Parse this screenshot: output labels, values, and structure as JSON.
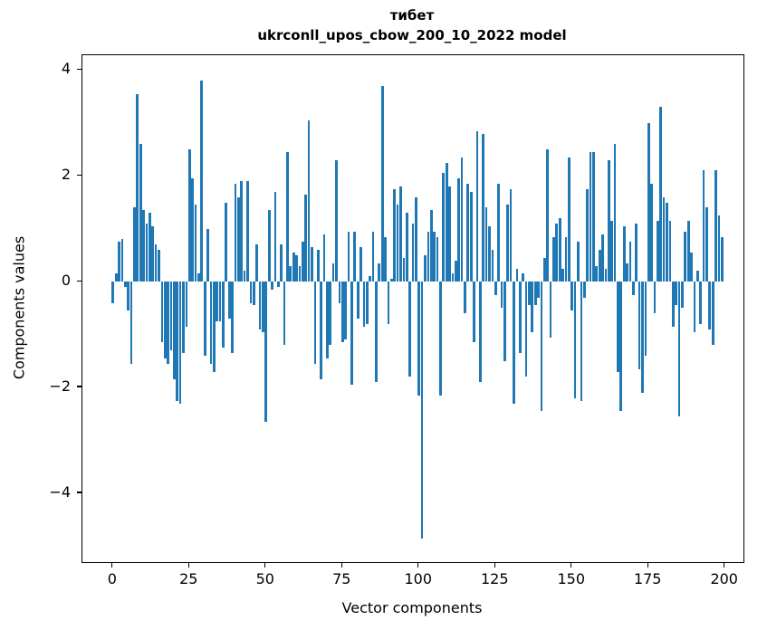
{
  "title": {
    "line1": "тибет",
    "line2": "ukrconll_upos_cbow_200_10_2022 model"
  },
  "chart_data": {
    "type": "bar",
    "title": "тибет\nukrconll_upos_cbow_200_10_2022 model",
    "xlabel": "Vector components",
    "ylabel": "Components values",
    "bar_color": "#1f77b4",
    "grid": false,
    "xlim": [
      -10,
      206
    ],
    "ylim": [
      -5.3,
      4.28
    ],
    "x_ticks": [
      {
        "v": 0,
        "label": "0"
      },
      {
        "v": 25,
        "label": "25"
      },
      {
        "v": 50,
        "label": "50"
      },
      {
        "v": 75,
        "label": "75"
      },
      {
        "v": 100,
        "label": "100"
      },
      {
        "v": 125,
        "label": "125"
      },
      {
        "v": 150,
        "label": "150"
      },
      {
        "v": 175,
        "label": "175"
      },
      {
        "v": 200,
        "label": "200"
      }
    ],
    "y_ticks": [
      {
        "v": 4,
        "label": "4"
      },
      {
        "v": 2,
        "label": "2"
      },
      {
        "v": 0,
        "label": "0"
      },
      {
        "v": -2,
        "label": "−2"
      },
      {
        "v": -4,
        "label": "−4"
      }
    ],
    "x_start": 0,
    "values": [
      -0.4,
      0.15,
      0.75,
      0.8,
      -0.1,
      -0.55,
      -1.55,
      1.4,
      3.55,
      2.6,
      1.35,
      1.1,
      1.3,
      1.05,
      0.7,
      0.6,
      -1.15,
      -1.45,
      -1.55,
      -1.3,
      -1.85,
      -2.25,
      -2.3,
      -1.35,
      -0.85,
      2.5,
      1.95,
      1.45,
      0.15,
      3.8,
      -1.4,
      1.0,
      -1.55,
      -1.7,
      -0.75,
      -0.75,
      -1.25,
      1.5,
      -0.7,
      -1.35,
      1.85,
      1.6,
      1.9,
      0.2,
      1.9,
      -0.4,
      -0.45,
      0.7,
      -0.9,
      -0.95,
      -2.65,
      1.35,
      -0.15,
      1.7,
      -0.1,
      0.7,
      -1.2,
      2.45,
      0.3,
      0.55,
      0.5,
      0.3,
      0.75,
      1.65,
      3.05,
      0.65,
      -1.55,
      0.6,
      -1.85,
      0.9,
      -1.45,
      -1.2,
      0.35,
      2.3,
      -0.4,
      -1.15,
      -1.1,
      0.95,
      -1.95,
      0.95,
      -0.7,
      0.65,
      -0.85,
      -0.8,
      0.1,
      0.95,
      -1.9,
      0.35,
      3.7,
      0.85,
      -0.8,
      0.05,
      1.75,
      1.45,
      1.8,
      0.45,
      1.3,
      -1.8,
      1.1,
      1.6,
      -2.15,
      -4.85,
      0.5,
      0.95,
      1.35,
      0.95,
      0.85,
      -2.15,
      2.05,
      2.25,
      1.8,
      0.15,
      0.4,
      1.95,
      2.35,
      -0.6,
      1.85,
      1.7,
      -1.15,
      2.85,
      -1.9,
      2.8,
      1.4,
      1.05,
      0.6,
      -0.25,
      1.85,
      -0.5,
      -1.5,
      1.45,
      1.75,
      -2.3,
      0.25,
      -1.35,
      0.15,
      -1.8,
      -0.45,
      -0.95,
      -0.45,
      -0.3,
      -2.45,
      0.45,
      2.5,
      -1.05,
      0.85,
      1.1,
      1.2,
      0.25,
      0.85,
      2.35,
      -0.55,
      -2.2,
      0.75,
      -2.25,
      -0.3,
      1.75,
      2.45,
      2.45,
      0.3,
      0.6,
      0.9,
      0.25,
      2.3,
      1.15,
      2.6,
      -1.7,
      -2.45,
      1.05,
      0.35,
      0.75,
      -0.25,
      1.1,
      -1.65,
      -2.1,
      -1.4,
      3.0,
      1.85,
      -0.6,
      1.15,
      3.3,
      1.6,
      1.5,
      1.15,
      -0.85,
      -0.45,
      -2.55,
      -0.5,
      0.95,
      1.15,
      0.55,
      -0.95,
      0.2,
      -0.8,
      2.1,
      1.4,
      -0.9,
      -1.2,
      2.1,
      1.25,
      0.85
    ]
  }
}
